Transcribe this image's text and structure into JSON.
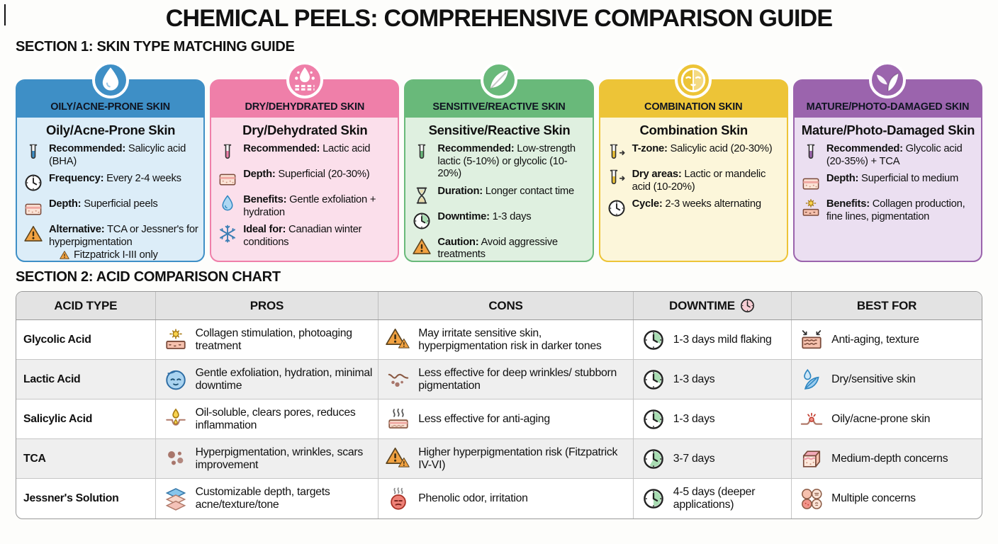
{
  "title": "CHEMICAL PEELS: COMPREHENSIVE COMPARISON GUIDE",
  "section1": {
    "heading": "SECTION 1: SKIN TYPE MATCHING GUIDE",
    "cards": [
      {
        "badge_icon": "water-drop-icon",
        "header": "OILY/ACNE-PRONE SKIN",
        "title": "Oily/Acne-Prone Skin",
        "colors": {
          "header": "#3e8fc6",
          "body": "#dcedf8"
        },
        "items": [
          {
            "icon": "test-tube-blue-icon",
            "label": "Recommended:",
            "text": "Salicylic acid (BHA)"
          },
          {
            "icon": "clock-outline-icon",
            "label": "Frequency:",
            "text": "Every 2-4 weeks"
          },
          {
            "icon": "skin-layers-icon",
            "label": "Depth:",
            "text": "Superficial peels"
          },
          {
            "icon": "warning-triangle-icon",
            "label": "Alternative:",
            "text": "TCA or Jessner's for hyperpigmentation",
            "note_icon": "warning-triangle-icon",
            "note": "Fitzpatrick I-III only"
          }
        ]
      },
      {
        "badge_icon": "droplet-splash-icon",
        "header": "DRY/DEHYDRATED SKIN",
        "title": "Dry/Dehydrated Skin",
        "colors": {
          "header": "#ef7fa9",
          "body": "#fbdfeb"
        },
        "items": [
          {
            "icon": "test-tube-pink-icon",
            "label": "Recommended:",
            "text": "Lactic acid"
          },
          {
            "icon": "skin-layers-icon",
            "label": "Depth:",
            "text": "Superficial (20-30%)"
          },
          {
            "icon": "blue-drop-icon",
            "label": "Benefits:",
            "text": "Gentle exfoliation + hydration"
          },
          {
            "icon": "snowflake-icon",
            "label": "Ideal for:",
            "text": "Canadian winter conditions"
          }
        ]
      },
      {
        "badge_icon": "feather-icon",
        "header": "SENSITIVE/REACTIVE SKIN",
        "title": "Sensitive/Reactive Skin",
        "colors": {
          "header": "#69b97a",
          "body": "#dff0e0"
        },
        "items": [
          {
            "icon": "test-tube-green-icon",
            "label": "Recommended:",
            "text": "Low-strength lactic (5-10%) or glycolic (10-20%)"
          },
          {
            "icon": "hourglass-icon",
            "label": "Duration:",
            "text": "Longer contact time"
          },
          {
            "icon": "clock-pie-small-icon",
            "label": "Downtime:",
            "text": "1-3 days"
          },
          {
            "icon": "warning-triangle-icon",
            "label": "Caution:",
            "text": "Avoid aggressive treatments"
          }
        ]
      },
      {
        "badge_icon": "half-face-icon",
        "header": "COMBINATION SKIN",
        "title": "Combination Skin",
        "colors": {
          "header": "#edc437",
          "body": "#fcf6da"
        },
        "items": [
          {
            "icon": "test-tube-arrow-icon",
            "label": "T-zone:",
            "text": "Salicylic acid (20-30%)"
          },
          {
            "icon": "test-tube-arrow-icon",
            "label": "Dry areas:",
            "text": "Lactic or mandelic acid (10-20%)"
          },
          {
            "icon": "clock-outline-icon",
            "label": "Cycle:",
            "text": "2-3 weeks alternating"
          }
        ]
      },
      {
        "badge_icon": "leaf-sprig-icon",
        "header": "MATURE/PHOTO-DAMAGED SKIN",
        "title": "Mature/Photo-Damaged Skin",
        "colors": {
          "header": "#9b64ad",
          "body": "#ebdff1"
        },
        "items": [
          {
            "icon": "test-tube-purple-icon",
            "label": "Recommended:",
            "text": "Glycolic acid (20-35%) + TCA"
          },
          {
            "icon": "skin-layers-icon",
            "label": "Depth:",
            "text": "Superficial to medium"
          },
          {
            "icon": "sun-skin-icon",
            "label": "Benefits:",
            "text": "Collagen production, fine lines, pigmentation"
          }
        ]
      }
    ]
  },
  "section2": {
    "heading": "SECTION 2: ACID COMPARISON CHART",
    "table": {
      "headers": [
        {
          "label": "ACID TYPE"
        },
        {
          "label": "PROS"
        },
        {
          "label": "CONS"
        },
        {
          "label": "DOWNTIME",
          "icon": "pink-clock-icon"
        },
        {
          "label": "BEST FOR"
        }
      ],
      "rows": [
        {
          "acid": "Glycolic Acid",
          "pros": {
            "icon": "sun-skin-icon",
            "text": "Collagen stimulation, photoaging treatment"
          },
          "cons": {
            "icon": "double-warning-icon",
            "text": "May irritate sensitive skin, hyperpigmentation risk in darker tones"
          },
          "downtime": {
            "icon": "clock-pie-small-icon",
            "text": "1-3 days mild flaking"
          },
          "best": {
            "icon": "skin-arrows-icon",
            "text": "Anti-aging, texture"
          }
        },
        {
          "acid": "Lactic Acid",
          "pros": {
            "icon": "calm-face-icon",
            "text": "Gentle exfoliation, hydration, minimal downtime"
          },
          "cons": {
            "icon": "wrinkle-dots-icon",
            "text": "Less effective for deep wrinkles/ stubborn pigmentation"
          },
          "downtime": {
            "icon": "clock-pie-small-icon",
            "text": "1-3 days"
          },
          "best": {
            "icon": "drop-feather-icon",
            "text": "Dry/sensitive skin"
          }
        },
        {
          "acid": "Salicylic Acid",
          "pros": {
            "icon": "oil-pore-icon",
            "text": "Oil-soluble, clears pores, reduces inflammation"
          },
          "cons": {
            "icon": "steam-skin-icon",
            "text": "Less effective for anti-aging"
          },
          "downtime": {
            "icon": "clock-pie-small-icon",
            "text": "1-3 days"
          },
          "best": {
            "icon": "pimple-icon",
            "text": "Oily/acne-prone skin"
          }
        },
        {
          "acid": "TCA",
          "pros": {
            "icon": "dots-cluster-icon",
            "text": "Hyperpigmentation, wrinkles, scars improvement"
          },
          "cons": {
            "icon": "double-warning-icon",
            "text": "Higher hyperpigmentation risk (Fitzpatrick IV-VI)"
          },
          "downtime": {
            "icon": "clock-pie-large-icon",
            "text": "3-7 days"
          },
          "best": {
            "icon": "skin-box-icon",
            "text": "Medium-depth concerns"
          }
        },
        {
          "acid": "Jessner's Solution",
          "pros": {
            "icon": "layers-icon",
            "text": "Customizable depth, targets acne/texture/tone"
          },
          "cons": {
            "icon": "red-face-icon",
            "text": "Phenolic odor, irritation"
          },
          "downtime": {
            "icon": "clock-pie-half-icon",
            "text": "4-5 days (deeper applications)"
          },
          "best": {
            "icon": "four-circles-icon",
            "text": "Multiple concerns"
          }
        }
      ]
    }
  }
}
